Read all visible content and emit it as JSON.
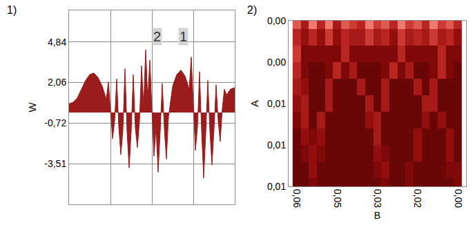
{
  "chart_data": [
    {
      "type": "line",
      "title": "1)",
      "y_label": "W",
      "color": "#9b1c1c",
      "x": [
        0,
        0.1,
        0.2,
        0.3,
        0.4,
        0.5,
        0.6,
        0.7,
        0.8,
        0.9,
        0.95,
        1,
        1.05,
        1.1,
        1.15,
        1.2,
        1.25,
        1.3,
        1.35,
        1.4,
        1.45,
        1.5,
        1.55,
        1.6,
        1.65,
        1.7,
        1.75,
        1.8,
        1.85,
        1.9,
        1.95,
        2,
        2.05,
        2.1,
        2.15,
        2.2,
        2.25,
        2.3,
        2.35,
        2.4,
        2.45,
        2.5,
        2.6,
        2.7,
        2.8,
        2.9,
        2.95,
        3,
        3.05,
        3.1,
        3.15,
        3.2,
        3.25,
        3.3,
        3.35,
        3.4,
        3.45,
        3.5,
        3.55,
        3.6,
        3.65,
        3.7,
        3.75,
        3.8,
        3.9,
        4
      ],
      "values": [
        0.6,
        0.7,
        1.0,
        1.6,
        2.2,
        2.6,
        2.7,
        2.4,
        1.8,
        0.9,
        2.1,
        0.2,
        -1.8,
        -0.6,
        2.3,
        -1.0,
        -2.9,
        -1.2,
        3.0,
        -1.3,
        -3.8,
        -1.3,
        2.6,
        -1.1,
        -2.4,
        -0.6,
        3.2,
        0.4,
        4.3,
        0.9,
        3.6,
        0.2,
        -3.0,
        -1.0,
        -4.1,
        -1.3,
        2.0,
        -1.1,
        -3.2,
        -0.3,
        0.8,
        1.8,
        2.6,
        2.9,
        2.5,
        1.6,
        3.8,
        0.5,
        -2.6,
        -1.0,
        2.8,
        -1.3,
        -4.5,
        -1.4,
        2.2,
        -1.3,
        -3.6,
        -1.1,
        1.9,
        -0.6,
        -2.0,
        0.3,
        1.6,
        1.2,
        1.6,
        1.7
      ],
      "xlim": [
        0,
        4
      ],
      "xticks": [
        1,
        2,
        3
      ],
      "ylim": [
        -6.3,
        7.0
      ],
      "yticks": [
        {
          "value": 4.84,
          "label": "4,84"
        },
        {
          "value": 2.06,
          "label": "2,06"
        },
        {
          "value": -0.72,
          "label": "-0,72"
        },
        {
          "value": -3.51,
          "label": "-3,51"
        }
      ],
      "grid": true,
      "tick_labels": "y",
      "annotations": [
        {
          "text": "2",
          "x": 2.13,
          "y": 5.2
        },
        {
          "text": "1",
          "x": 2.75,
          "y": 5.2
        }
      ]
    },
    {
      "type": "heatmap",
      "title": "2)",
      "x_label": "B",
      "y_label": "A",
      "x": [
        0.06,
        0.057,
        0.054,
        0.051,
        0.048,
        0.045,
        0.042,
        0.039,
        0.036,
        0.033,
        0.03,
        0.027,
        0.024,
        0.021,
        0.018,
        0.015,
        0.012,
        0.009,
        0.006,
        0.003,
        0
      ],
      "y": [
        0,
        0.001,
        0.002,
        0.003,
        0.004,
        0.005,
        0.006,
        0.007,
        0.008,
        0.009,
        0.01
      ],
      "z": [
        [
          0.8,
          0.5,
          0.9,
          0.6,
          0.9,
          0.5,
          0.8,
          0.7,
          0.6,
          0.9,
          0.7,
          0.8,
          0.6,
          0.9,
          0.7,
          0.8,
          0.6,
          0.9,
          0.7,
          0.8,
          0.6
        ],
        [
          0.6,
          0.4,
          0.6,
          0.4,
          0.7,
          0.4,
          0.6,
          0.5,
          0.5,
          0.7,
          0.5,
          0.6,
          0.4,
          0.7,
          0.5,
          0.6,
          0.5,
          0.7,
          0.5,
          0.6,
          0.4
        ],
        [
          0.7,
          0.3,
          0.3,
          0.3,
          0.3,
          0.3,
          0.6,
          0.3,
          0.3,
          0.3,
          0.3,
          0.3,
          0.3,
          0.6,
          0.3,
          0.3,
          0.3,
          0.3,
          0.6,
          0.3,
          0.3
        ],
        [
          0.6,
          0.3,
          0.2,
          0.2,
          0.3,
          0.6,
          0.3,
          0.5,
          0.2,
          0.2,
          0.2,
          0.3,
          0.6,
          0.3,
          0.5,
          0.2,
          0.2,
          0.3,
          0.6,
          0.3,
          0.2
        ],
        [
          0.5,
          0.4,
          0.2,
          0.2,
          0.5,
          0.2,
          0.2,
          0.2,
          0.5,
          0.2,
          0.2,
          0.5,
          0.2,
          0.2,
          0.2,
          0.5,
          0.2,
          0.5,
          0.2,
          0.2,
          0.2
        ],
        [
          0.4,
          0.5,
          0.2,
          0.2,
          0.5,
          0.2,
          0.2,
          0.2,
          0.2,
          0.5,
          0.2,
          0.5,
          0.2,
          0.2,
          0.2,
          0.2,
          0.5,
          0.5,
          0.2,
          0.2,
          0.2
        ],
        [
          0.3,
          0.5,
          0.2,
          0.5,
          0.2,
          0.2,
          0.2,
          0.2,
          0.2,
          0.4,
          0.5,
          0.2,
          0.2,
          0.2,
          0.2,
          0.2,
          0.4,
          0.2,
          0.4,
          0.2,
          0.2
        ],
        [
          0.2,
          0.4,
          0.3,
          0.4,
          0.2,
          0.2,
          0.2,
          0.2,
          0.2,
          0.2,
          0.5,
          0.2,
          0.2,
          0.2,
          0.2,
          0.4,
          0.2,
          0.2,
          0.2,
          0.4,
          0.2
        ],
        [
          0.2,
          0.3,
          0.4,
          0.3,
          0.2,
          0.2,
          0.2,
          0.2,
          0.2,
          0.2,
          0.4,
          0.3,
          0.2,
          0.2,
          0.2,
          0.4,
          0.2,
          0.2,
          0.2,
          0.4,
          0.2
        ],
        [
          0.2,
          0.2,
          0.4,
          0.2,
          0.2,
          0.2,
          0.2,
          0.2,
          0.2,
          0.2,
          0.3,
          0.4,
          0.2,
          0.2,
          0.3,
          0.2,
          0.2,
          0.2,
          0.2,
          0.3,
          0.3
        ],
        [
          0.2,
          0.2,
          0.3,
          0.2,
          0.2,
          0.2,
          0.2,
          0.2,
          0.2,
          0.2,
          0.2,
          0.3,
          0.2,
          0.2,
          0.3,
          0.2,
          0.2,
          0.2,
          0.2,
          0.2,
          0.3
        ]
      ],
      "zlim": [
        0,
        1
      ],
      "xlim": [
        0.063,
        -0.003
      ],
      "xticks": [
        {
          "value": 0.06,
          "label": "0,06"
        },
        {
          "value": 0.045,
          "label": "0,05"
        },
        {
          "value": 0.03,
          "label": "0,03"
        },
        {
          "value": 0.015,
          "label": "0,02"
        },
        {
          "value": 0,
          "label": "0,00"
        }
      ],
      "ylim": [
        0.01,
        0
      ],
      "yticks": [
        {
          "value": 0,
          "label": "0,00"
        },
        {
          "value": 0.0025,
          "label": "0,00"
        },
        {
          "value": 0.005,
          "label": "0,01"
        },
        {
          "value": 0.0075,
          "label": "0,01"
        },
        {
          "value": 0.01,
          "label": "0,01"
        }
      ],
      "grid": false
    }
  ]
}
